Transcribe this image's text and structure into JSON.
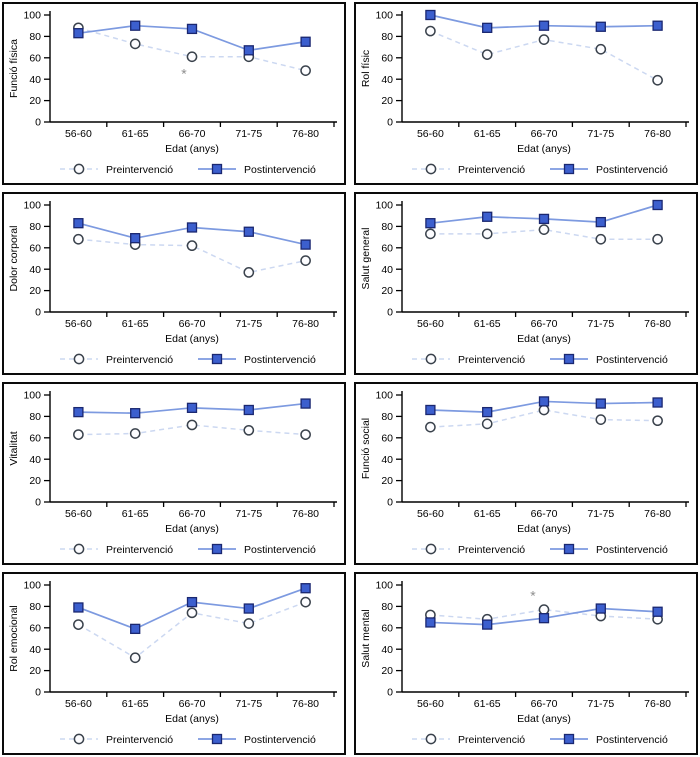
{
  "page": {
    "background": "#ffffff"
  },
  "colors": {
    "axis": "#000000",
    "text": "#000000",
    "pre_line": "#ccd8f1",
    "pre_marker_fill": "#fdfdff",
    "pre_marker_stroke": "#3a424c",
    "post_line": "#7d9ae0",
    "post_marker_fill": "#3c5fce",
    "post_marker_stroke": "#1a2770",
    "annotation": "#8d8d8d",
    "panel_border": "#0a0a0a"
  },
  "chart_data": {
    "type": "line",
    "categories": [
      "56-60",
      "61-65",
      "66-70",
      "71-75",
      "76-80"
    ],
    "xlabel": "Edat (anys)",
    "ylim": [
      0,
      100
    ],
    "yticks": [
      0,
      20,
      40,
      60,
      80,
      100
    ],
    "legend": [
      "Preintervenció",
      "Postintervenció"
    ],
    "legend_position": "bottom",
    "grid": "off",
    "panels": [
      {
        "ylabel": "Funció física",
        "series": [
          {
            "name": "Preintervenció",
            "style": "dashed-open-circle",
            "values": [
              88,
              73,
              61,
              61,
              48
            ]
          },
          {
            "name": "Postintervenció",
            "style": "solid-filled-square",
            "values": [
              83,
              90,
              87,
              67,
              75
            ]
          }
        ],
        "annotations": [
          {
            "text": "*",
            "category": "66-70",
            "category_index": 2,
            "dx": -8,
            "value": 47
          }
        ]
      },
      {
        "ylabel": "Rol físic",
        "series": [
          {
            "name": "Preintervenció",
            "style": "dashed-open-circle",
            "values": [
              85,
              63,
              77,
              68,
              39
            ]
          },
          {
            "name": "Postintervenció",
            "style": "solid-filled-square",
            "values": [
              100,
              88,
              90,
              89,
              90
            ]
          }
        ],
        "annotations": []
      },
      {
        "ylabel": "Dolor corporal",
        "series": [
          {
            "name": "Preintervenció",
            "style": "dashed-open-circle",
            "values": [
              68,
              63,
              62,
              37,
              48
            ]
          },
          {
            "name": "Postintervenció",
            "style": "solid-filled-square",
            "values": [
              83,
              69,
              79,
              75,
              63
            ]
          }
        ],
        "annotations": []
      },
      {
        "ylabel": "Salut general",
        "series": [
          {
            "name": "Preintervenció",
            "style": "dashed-open-circle",
            "values": [
              73,
              73,
              77,
              68,
              68
            ]
          },
          {
            "name": "Postintervenció",
            "style": "solid-filled-square",
            "values": [
              83,
              89,
              87,
              84,
              100
            ]
          }
        ],
        "annotations": []
      },
      {
        "ylabel": "Vitalitat",
        "series": [
          {
            "name": "Preintervenció",
            "style": "dashed-open-circle",
            "values": [
              63,
              64,
              72,
              67,
              63
            ]
          },
          {
            "name": "Postintervenció",
            "style": "solid-filled-square",
            "values": [
              84,
              83,
              88,
              86,
              92
            ]
          }
        ],
        "annotations": []
      },
      {
        "ylabel": "Funció social",
        "series": [
          {
            "name": "Preintervenció",
            "style": "dashed-open-circle",
            "values": [
              70,
              73,
              86,
              77,
              76
            ]
          },
          {
            "name": "Postintervenció",
            "style": "solid-filled-square",
            "values": [
              86,
              84,
              94,
              92,
              93
            ]
          }
        ],
        "annotations": []
      },
      {
        "ylabel": "Rol emocional",
        "series": [
          {
            "name": "Preintervenció",
            "style": "dashed-open-circle",
            "values": [
              63,
              32,
              74,
              64,
              84
            ]
          },
          {
            "name": "Postintervenció",
            "style": "solid-filled-square",
            "values": [
              79,
              59,
              84,
              78,
              97
            ]
          }
        ],
        "annotations": []
      },
      {
        "ylabel": "Salut mental",
        "series": [
          {
            "name": "Preintervenció",
            "style": "dashed-open-circle",
            "values": [
              72,
              68,
              77,
              71,
              68
            ]
          },
          {
            "name": "Postintervenció",
            "style": "solid-filled-square",
            "values": [
              65,
              63,
              69,
              78,
              75
            ]
          }
        ],
        "annotations": [
          {
            "text": "*",
            "category": "66-70",
            "category_index": 2,
            "dx": -11,
            "value": 92
          }
        ]
      }
    ]
  }
}
